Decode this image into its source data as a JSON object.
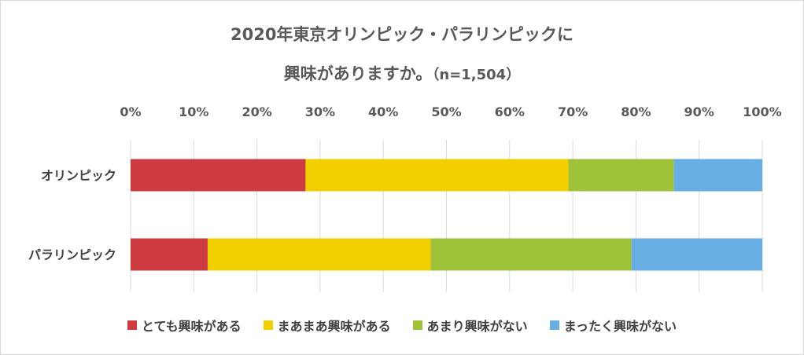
{
  "chart_data": {
    "type": "bar",
    "orientation": "horizontal-stacked-100",
    "title_line1": "2020年東京オリンピック・パラリンピックに",
    "title_line2": "興味がありますか。",
    "title_n": "（n=1,504）",
    "x_ticks": [
      "0%",
      "10%",
      "20%",
      "30%",
      "40%",
      "50%",
      "60%",
      "70%",
      "80%",
      "90%",
      "100%"
    ],
    "xlim": [
      0,
      100
    ],
    "categories": [
      "オリンピック",
      "パラリンピック"
    ],
    "series": [
      {
        "name": "とても興味がある",
        "color": "#cc3b40",
        "values": [
          27.7,
          12.2
        ]
      },
      {
        "name": "まあまあ興味がある",
        "color": "#f2d000",
        "values": [
          41.6,
          35.3
        ]
      },
      {
        "name": "あまり興味がない",
        "color": "#a0c238",
        "values": [
          16.7,
          31.8
        ]
      },
      {
        "name": "まったく興味がない",
        "color": "#66aee3",
        "values": [
          14.0,
          20.7
        ]
      }
    ],
    "legend_position": "bottom",
    "grid": true
  }
}
